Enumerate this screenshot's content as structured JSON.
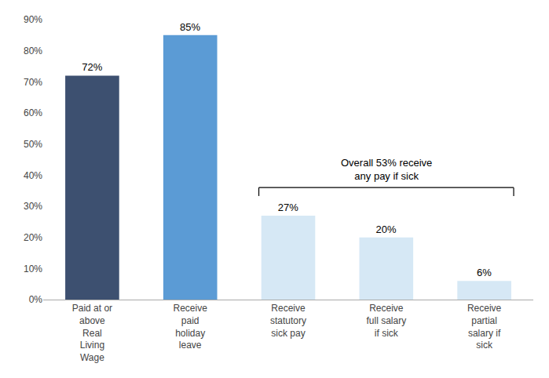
{
  "chart_data": {
    "type": "bar",
    "categories": [
      "Paid at or\nabove\nReal\nLiving\nWage",
      "Receive\npaid\nholiday\nleave",
      "Receive\nstatutory\nsick pay",
      "Receive\nfull salary\nif sick",
      "Receive\npartial\nsalary if\nsick"
    ],
    "values": [
      72,
      85,
      27,
      20,
      6
    ],
    "value_labels": [
      "72%",
      "85%",
      "27%",
      "20%",
      "6%"
    ],
    "colors": [
      "#3d5070",
      "#5b9bd5",
      "#d6e8f5",
      "#d6e8f5",
      "#d6e8f5"
    ],
    "data_labels": true,
    "annotations": [
      "Overall 53% receive\nany pay if sick"
    ],
    "ylim": [
      0,
      90
    ],
    "yticks": [
      {
        "value": 0,
        "label": "0%"
      },
      {
        "value": 10,
        "label": "10%"
      },
      {
        "value": 20,
        "label": "20%"
      },
      {
        "value": 30,
        "label": "30%"
      },
      {
        "value": 40,
        "label": "40%"
      },
      {
        "value": 50,
        "label": "50%"
      },
      {
        "value": 60,
        "label": "60%"
      },
      {
        "value": 70,
        "label": "70%"
      },
      {
        "value": 80,
        "label": "80%"
      },
      {
        "value": 90,
        "label": "90%"
      }
    ],
    "grid": false
  }
}
